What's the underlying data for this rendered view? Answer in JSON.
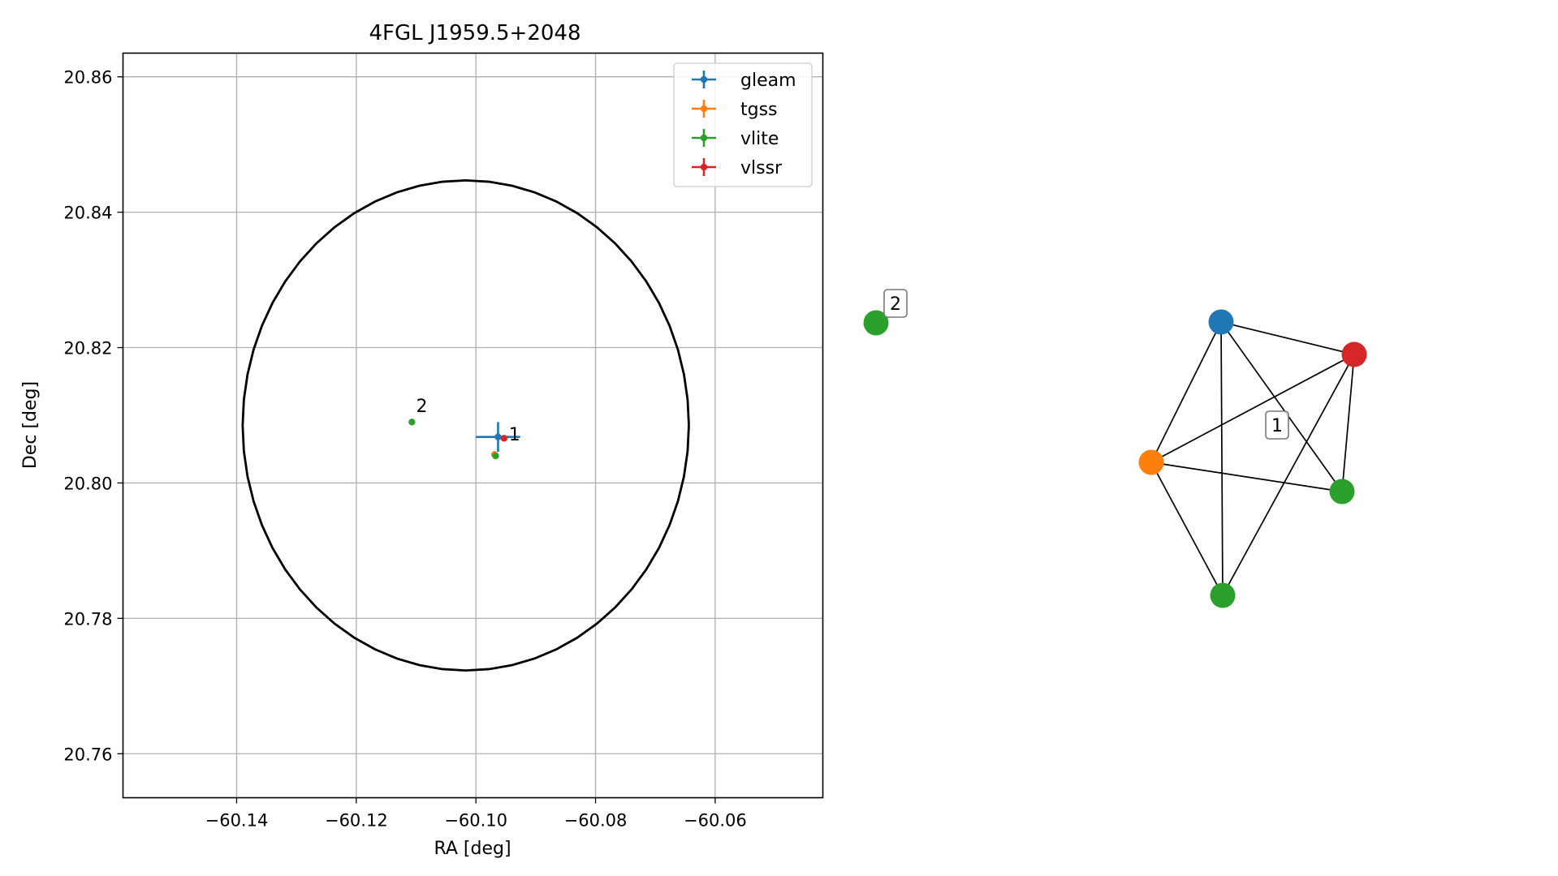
{
  "chart_data": [
    {
      "type": "scatter",
      "title": "4FGL J1959.5+2048",
      "xlabel": "RA [deg]",
      "ylabel": "Dec [deg]",
      "xlim": [
        -60.159,
        -60.042
      ],
      "ylim": [
        20.7535,
        20.8635
      ],
      "xticks": [
        -60.14,
        -60.12,
        -60.1,
        -60.08,
        -60.06
      ],
      "xtick_labels": [
        "−60.14",
        "−60.12",
        "−60.10",
        "−60.08",
        "−60.06"
      ],
      "yticks": [
        20.76,
        20.78,
        20.8,
        20.82,
        20.84,
        20.86
      ],
      "ytick_labels": [
        "20.76",
        "20.78",
        "20.80",
        "20.82",
        "20.84",
        "20.86"
      ],
      "grid": true,
      "legend": "top-right",
      "error_ellipse": {
        "center": [
          -60.1017,
          20.8085
        ],
        "ra_halfwidth": 0.0373,
        "dec_halfwidth": 0.0362,
        "color": "#000000"
      },
      "series": [
        {
          "name": "gleam",
          "color": "#1f77b4",
          "points": [
            {
              "x": -60.0963,
              "y": 20.8068,
              "xerr": 0.0037,
              "yerr": 0.0022
            }
          ]
        },
        {
          "name": "tgss",
          "color": "#ff7f0e",
          "points": [
            {
              "x": -60.0969,
              "y": 20.8042,
              "xerr": 0.0003,
              "yerr": 0.0003
            }
          ]
        },
        {
          "name": "vlite",
          "color": "#2ca02c",
          "points": [
            {
              "x": -60.1107,
              "y": 20.809
            },
            {
              "x": -60.0967,
              "y": 20.804
            }
          ]
        },
        {
          "name": "vlssr",
          "color": "#d62728",
          "points": [
            {
              "x": -60.0953,
              "y": 20.8066,
              "xerr": 0.0004,
              "yerr": 0.0004
            }
          ]
        }
      ],
      "annotations": [
        {
          "text": "2",
          "x": -60.11,
          "y": 20.8105
        },
        {
          "text": "1",
          "x": -60.0945,
          "y": 20.8063
        }
      ]
    },
    {
      "type": "network",
      "nodes": [
        {
          "id": "gleam-node",
          "color": "#1f77b4"
        },
        {
          "id": "vlssr-node",
          "color": "#d62728"
        },
        {
          "id": "tgss-node",
          "color": "#ff7f0e"
        },
        {
          "id": "vlite-node-a",
          "color": "#2ca02c"
        },
        {
          "id": "vlite-node-b",
          "color": "#2ca02c"
        },
        {
          "id": "vlite-node-isolated",
          "color": "#2ca02c"
        }
      ],
      "edges": [
        [
          "gleam-node",
          "vlssr-node"
        ],
        [
          "gleam-node",
          "tgss-node"
        ],
        [
          "gleam-node",
          "vlite-node-a"
        ],
        [
          "gleam-node",
          "vlite-node-b"
        ],
        [
          "vlssr-node",
          "tgss-node"
        ],
        [
          "vlssr-node",
          "vlite-node-a"
        ],
        [
          "vlssr-node",
          "vlite-node-b"
        ],
        [
          "tgss-node",
          "vlite-node-a"
        ],
        [
          "tgss-node",
          "vlite-node-b"
        ]
      ],
      "cluster_labels": [
        {
          "text": "1",
          "cluster": [
            "gleam-node",
            "vlssr-node",
            "tgss-node",
            "vlite-node-a",
            "vlite-node-b"
          ]
        },
        {
          "text": "2",
          "cluster": [
            "vlite-node-isolated"
          ]
        }
      ]
    }
  ]
}
